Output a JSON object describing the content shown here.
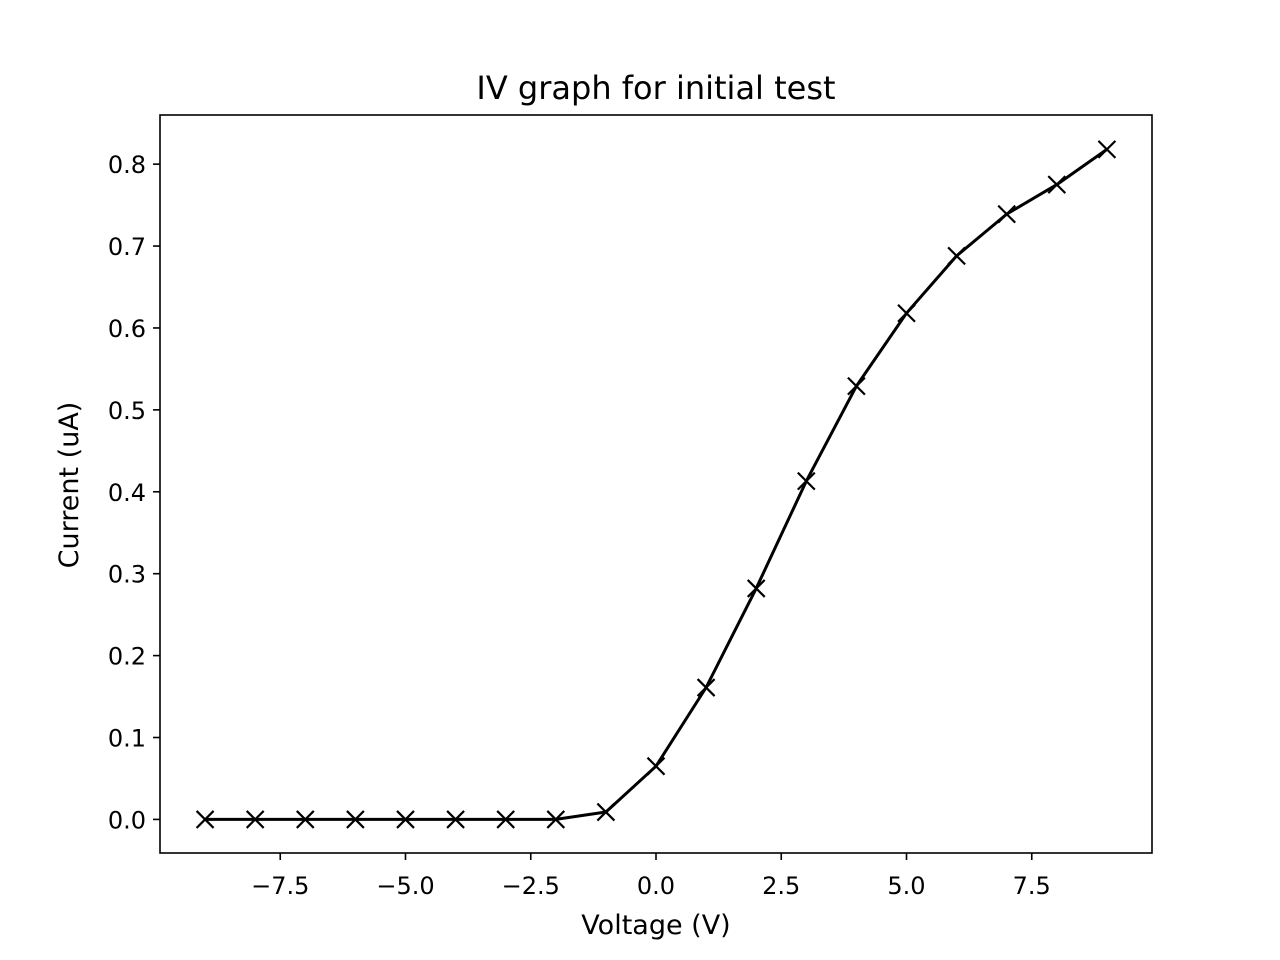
{
  "chart_data": {
    "type": "line",
    "title": "IV graph for initial test",
    "xlabel": "Voltage (V)",
    "ylabel": "Current (uA)",
    "xlim": [
      -9.9,
      9.9
    ],
    "ylim": [
      -0.041,
      0.86
    ],
    "x_ticks": [
      -7.5,
      -5.0,
      -2.5,
      0.0,
      2.5,
      5.0,
      7.5
    ],
    "x_tick_labels": [
      "−7.5",
      "−5.0",
      "−2.5",
      "0.0",
      "2.5",
      "5.0",
      "7.5"
    ],
    "y_ticks": [
      0.0,
      0.1,
      0.2,
      0.3,
      0.4,
      0.5,
      0.6,
      0.7,
      0.8
    ],
    "y_tick_labels": [
      "0.0",
      "0.1",
      "0.2",
      "0.3",
      "0.4",
      "0.5",
      "0.6",
      "0.7",
      "0.8"
    ],
    "grid": false,
    "legend": false,
    "marker": "x",
    "series": [
      {
        "color": "#000000",
        "x": [
          -9,
          -8,
          -7,
          -6,
          -5,
          -4,
          -3,
          -2,
          -1,
          0,
          1,
          2,
          3,
          4,
          5,
          6,
          7,
          8,
          9
        ],
        "y": [
          0.0,
          0.0,
          0.0,
          0.0,
          0.0,
          0.0,
          0.0,
          0.0,
          0.009,
          0.065,
          0.161,
          0.282,
          0.413,
          0.529,
          0.618,
          0.688,
          0.739,
          0.775,
          0.818
        ]
      }
    ]
  }
}
